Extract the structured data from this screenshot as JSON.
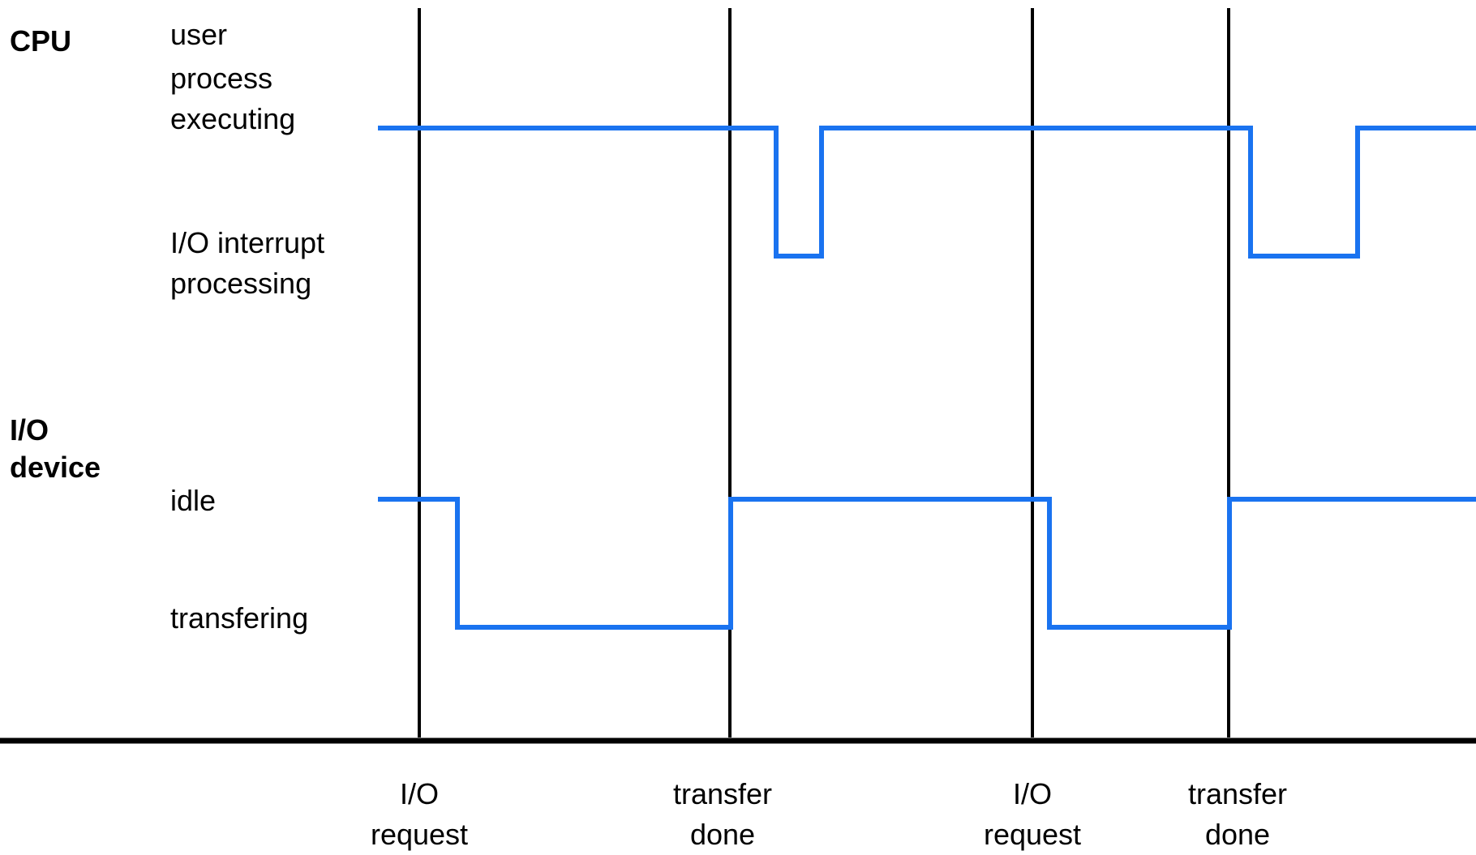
{
  "rows": {
    "cpu": {
      "label_line1": "CPU",
      "state_high_lines": [
        "user",
        "process",
        "executing"
      ],
      "state_low_lines": [
        "I/O interrupt",
        "processing"
      ]
    },
    "io": {
      "label_line1": "I/O",
      "label_line2": "device",
      "state_high": "idle",
      "state_low": "transfering"
    }
  },
  "events": [
    {
      "line1": "I/O",
      "line2": "request"
    },
    {
      "line1": "transfer",
      "line2": "done"
    },
    {
      "line1": "I/O",
      "line2": "request"
    },
    {
      "line1": "transfer",
      "line2": "done"
    }
  ],
  "colors": {
    "signal": "#1a73f0",
    "markers": "#000000",
    "axis": "#000000"
  }
}
